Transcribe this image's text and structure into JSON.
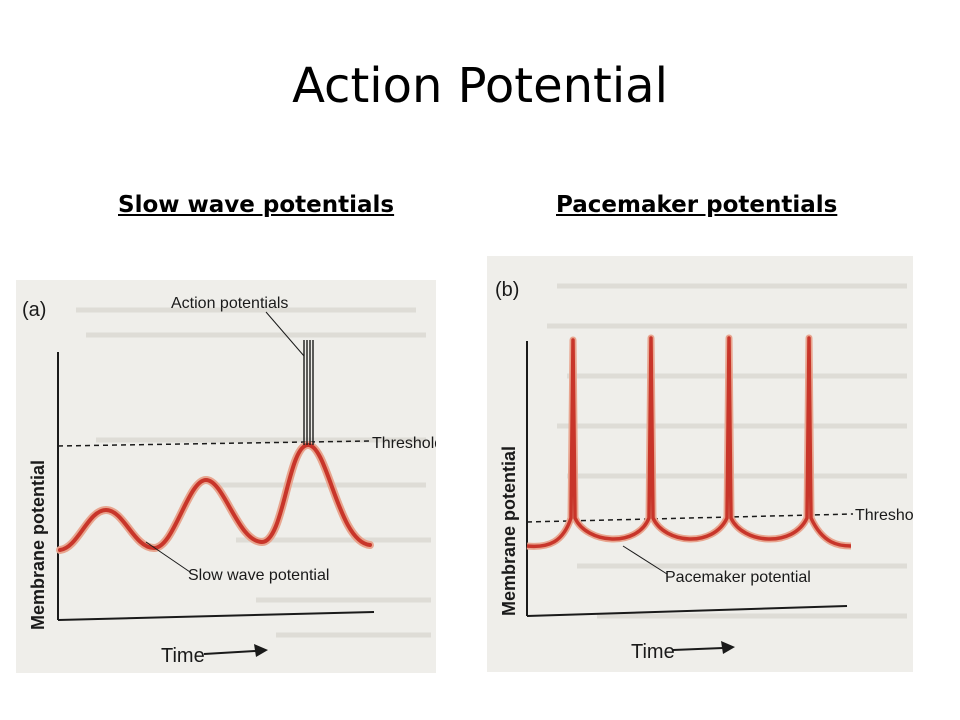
{
  "slide": {
    "title": "Action Potential",
    "left_heading": "Slow wave potentials",
    "right_heading": "Pacemaker potentials"
  },
  "panel_a": {
    "label": "(a)",
    "y_axis_label": "Membrane potential",
    "x_axis_label": "Time",
    "threshold_label": "Threshold",
    "spikes_label": "Action potentials",
    "trace_label": "Slow wave potential"
  },
  "panel_b": {
    "label": "(b)",
    "y_axis_label": "Membrane potential",
    "x_axis_label": "Time",
    "threshold_label": "Threshold",
    "trace_label": "Pacemaker potential"
  },
  "colors": {
    "trace": "#c8352a",
    "trace_glow": "#e8a58f",
    "paper": "#efeeea",
    "ink": "#1a1a1a"
  }
}
